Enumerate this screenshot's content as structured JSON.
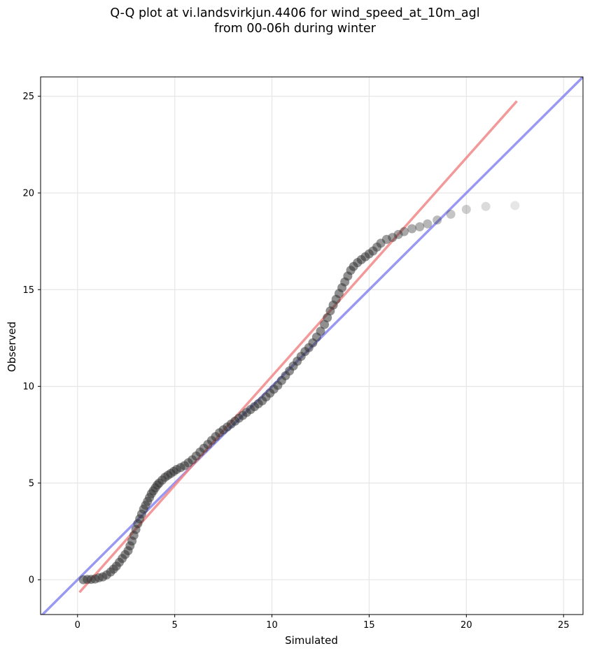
{
  "chart_data": {
    "type": "scatter",
    "title_line1": "Q-Q plot at vi.landsvirkjun.4406 for wind_speed_at_10m_agl",
    "title_line2": "from 00-06h during winter",
    "xlabel": "Simulated",
    "ylabel": "Observed",
    "xlim": [
      -1.9,
      26.0
    ],
    "ylim": [
      -1.8,
      26.0
    ],
    "xticks": [
      0,
      5,
      10,
      15,
      20,
      25
    ],
    "yticks": [
      0,
      5,
      10,
      15,
      20,
      25
    ],
    "grid": true,
    "colors": {
      "points": "#333333",
      "fit_line": "#f08080",
      "identity_line": "#8080f0"
    },
    "series": [
      {
        "markers": "quantile points",
        "x": [
          0.3,
          0.5,
          0.7,
          0.9,
          1.1,
          1.3,
          1.5,
          1.7,
          1.85,
          2.0,
          2.15,
          2.3,
          2.45,
          2.6,
          2.7,
          2.8,
          2.9,
          3.0,
          3.1,
          3.2,
          3.3,
          3.4,
          3.5,
          3.6,
          3.7,
          3.8,
          3.9,
          4.0,
          4.1,
          4.2,
          4.35,
          4.5,
          4.65,
          4.8,
          4.95,
          5.1,
          5.3,
          5.5,
          5.7,
          5.9,
          6.1,
          6.3,
          6.5,
          6.7,
          6.9,
          7.1,
          7.3,
          7.5,
          7.7,
          7.9,
          8.1,
          8.3,
          8.5,
          8.7,
          8.9,
          9.1,
          9.3,
          9.5,
          9.7,
          9.9,
          10.1,
          10.3,
          10.5,
          10.7,
          10.9,
          11.1,
          11.3,
          11.5,
          11.7,
          11.9,
          12.1,
          12.3,
          12.5,
          12.7,
          12.85,
          13.0,
          13.15,
          13.3,
          13.45,
          13.6,
          13.75,
          13.9,
          14.05,
          14.2,
          14.4,
          14.6,
          14.8,
          15.0,
          15.2,
          15.4,
          15.6,
          15.9,
          16.2,
          16.5,
          16.8,
          17.2,
          17.6,
          18.0,
          18.5,
          19.2,
          20.0,
          21.0,
          22.5
        ],
        "y": [
          0.0,
          0.02,
          0.02,
          0.04,
          0.1,
          0.15,
          0.25,
          0.4,
          0.55,
          0.7,
          0.9,
          1.1,
          1.3,
          1.5,
          1.75,
          2.0,
          2.3,
          2.6,
          2.9,
          3.15,
          3.4,
          3.65,
          3.85,
          4.05,
          4.25,
          4.45,
          4.6,
          4.75,
          4.9,
          5.0,
          5.15,
          5.3,
          5.4,
          5.5,
          5.6,
          5.7,
          5.8,
          5.9,
          6.05,
          6.2,
          6.4,
          6.6,
          6.8,
          7.0,
          7.2,
          7.4,
          7.6,
          7.75,
          7.9,
          8.05,
          8.2,
          8.35,
          8.5,
          8.65,
          8.8,
          8.95,
          9.1,
          9.25,
          9.45,
          9.65,
          9.85,
          10.05,
          10.3,
          10.55,
          10.8,
          11.05,
          11.3,
          11.55,
          11.8,
          12.0,
          12.25,
          12.55,
          12.85,
          13.2,
          13.55,
          13.9,
          14.2,
          14.5,
          14.8,
          15.1,
          15.4,
          15.7,
          16.0,
          16.2,
          16.4,
          16.55,
          16.7,
          16.85,
          17.0,
          17.2,
          17.4,
          17.6,
          17.7,
          17.85,
          18.0,
          18.15,
          18.25,
          18.4,
          18.6,
          18.9,
          19.15,
          19.3,
          19.35
        ]
      }
    ],
    "fit_line": {
      "x": [
        0.1,
        22.6
      ],
      "y": [
        -0.65,
        24.75
      ]
    },
    "identity_line": {
      "x": [
        -1.9,
        26.0
      ],
      "y": [
        -1.9,
        26.0
      ]
    }
  }
}
